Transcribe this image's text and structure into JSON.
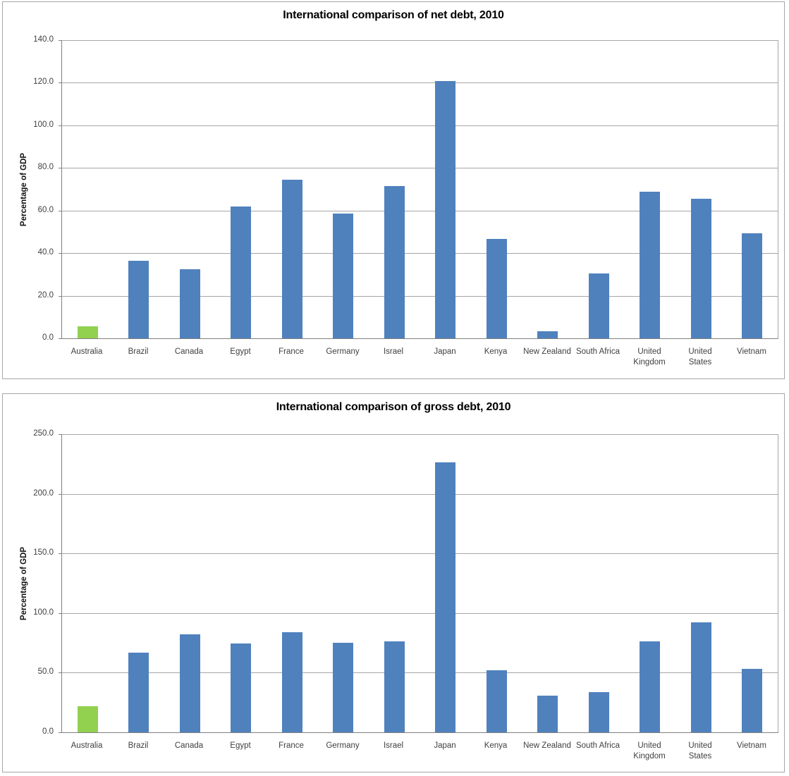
{
  "chart_data": [
    {
      "type": "bar",
      "title": "International comparison of net debt, 2010",
      "ylabel": "Percentage of GDP",
      "xlabel": "",
      "ylim": [
        0,
        140
      ],
      "ytick_step": 20,
      "ytick_format": "one_decimal",
      "grid": "horizontal-major",
      "legend": "none",
      "categories": [
        "Australia",
        "Brazil",
        "Canada",
        "Egypt",
        "France",
        "Germany",
        "Israel",
        "Japan",
        "Kenya",
        "New Zealand",
        "South Africa",
        "United\nKingdom",
        "United\nStates",
        "Vietnam"
      ],
      "values": [
        5.5,
        36.5,
        32.3,
        61.8,
        74.4,
        58.7,
        71.4,
        120.7,
        46.8,
        3.4,
        30.3,
        68.7,
        65.6,
        49.3
      ],
      "highlight_category": "Australia"
    },
    {
      "type": "bar",
      "title": "International comparison of gross debt, 2010",
      "ylabel": "Percentage of GDP",
      "xlabel": "",
      "ylim": [
        0,
        250
      ],
      "ytick_step": 50,
      "ytick_format": "one_decimal",
      "grid": "horizontal-major",
      "legend": "none",
      "categories": [
        "Australia",
        "Brazil",
        "Canada",
        "Egypt",
        "France",
        "Germany",
        "Israel",
        "Japan",
        "Kenya",
        "New Zealand",
        "South Africa",
        "United\nKingdom",
        "United\nStates",
        "Vietnam"
      ],
      "values": [
        22.0,
        67.0,
        82.0,
        74.4,
        84.0,
        75.3,
        76.0,
        226.1,
        52.2,
        31.0,
        33.9,
        76.5,
        92.3,
        53.0
      ],
      "highlight_category": "Australia"
    }
  ],
  "colors": {
    "bar_default": "#4F81BD",
    "bar_highlight": "#92D050",
    "gridline": "#a6a6a6",
    "axis_line": "#808080",
    "panel_border": "#a6a6a6",
    "label_text": "#404040",
    "title_text": "#000000"
  }
}
